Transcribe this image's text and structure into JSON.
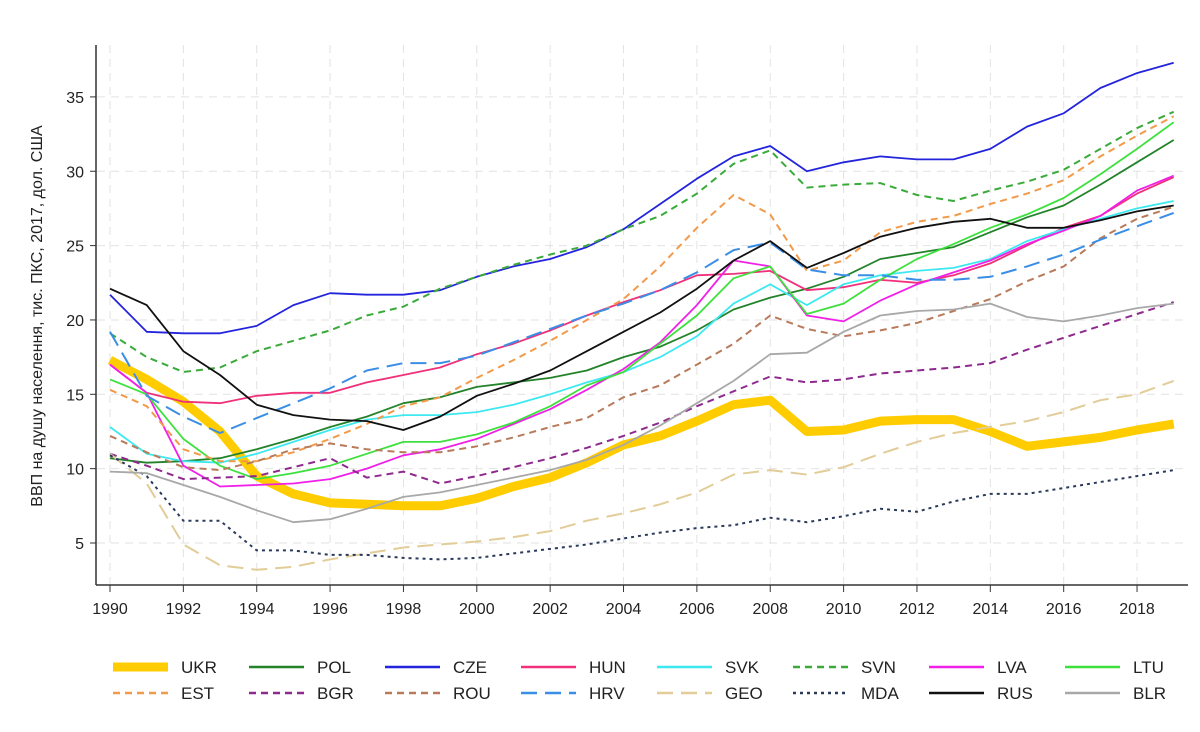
{
  "chart_data": {
    "type": "line",
    "title": "",
    "xlabel": "",
    "ylabel": "ВВП на душу населення, тис. ПКС, 2017, дол. США",
    "xlim": [
      1989.6,
      2019.4
    ],
    "ylim": [
      2.2,
      38.5
    ],
    "grid": true,
    "legend_position": "bottom",
    "x_ticks": [
      1990,
      1992,
      1994,
      1996,
      1998,
      2000,
      2002,
      2004,
      2006,
      2008,
      2010,
      2012,
      2014,
      2016,
      2018
    ],
    "y_ticks": [
      5,
      10,
      15,
      20,
      25,
      30,
      35
    ],
    "x": [
      1990,
      1991,
      1992,
      1993,
      1994,
      1995,
      1996,
      1997,
      1998,
      1999,
      2000,
      2001,
      2002,
      2003,
      2004,
      2005,
      2006,
      2007,
      2008,
      2009,
      2010,
      2011,
      2012,
      2013,
      2014,
      2015,
      2016,
      2017,
      2018,
      2019
    ],
    "series": [
      {
        "name": "UKR",
        "color": "#ffcc00",
        "style": "thick",
        "values": [
          17.3,
          16.0,
          14.5,
          12.5,
          9.5,
          8.3,
          7.7,
          7.6,
          7.5,
          7.5,
          8.0,
          8.8,
          9.4,
          10.4,
          11.6,
          12.2,
          13.2,
          14.3,
          14.6,
          12.5,
          12.6,
          13.2,
          13.3,
          13.3,
          12.5,
          11.5,
          11.8,
          12.1,
          12.6,
          13.0
        ]
      },
      {
        "name": "POL",
        "color": "#23832a",
        "style": "solid",
        "values": [
          10.7,
          10.4,
          10.5,
          10.7,
          11.3,
          12.0,
          12.8,
          13.5,
          14.4,
          14.8,
          15.5,
          15.8,
          16.1,
          16.6,
          17.5,
          18.2,
          19.3,
          20.7,
          21.5,
          22.1,
          22.9,
          24.1,
          24.5,
          24.9,
          25.9,
          26.9,
          27.7,
          29.1,
          30.6,
          32.1
        ]
      },
      {
        "name": "CZE",
        "color": "#2424dd",
        "style": "solid",
        "values": [
          21.7,
          19.2,
          19.1,
          19.1,
          19.6,
          21.0,
          21.8,
          21.7,
          21.7,
          22.0,
          22.9,
          23.6,
          24.1,
          24.9,
          26.1,
          27.8,
          29.5,
          31.0,
          31.7,
          30.0,
          30.6,
          31.0,
          30.8,
          30.8,
          31.5,
          33.0,
          33.9,
          35.6,
          36.6,
          37.3
        ]
      },
      {
        "name": "HUN",
        "color": "#f0307a",
        "style": "solid",
        "values": [
          17.0,
          15.1,
          14.5,
          14.4,
          14.9,
          15.1,
          15.1,
          15.8,
          16.3,
          16.8,
          17.7,
          18.4,
          19.3,
          20.3,
          21.2,
          22.0,
          23.0,
          23.1,
          23.3,
          22.0,
          22.2,
          22.7,
          22.5,
          23.0,
          23.8,
          25.0,
          26.2,
          27.0,
          28.5,
          29.6
        ]
      },
      {
        "name": "SVK",
        "color": "#3ee8f0",
        "style": "solid",
        "values": [
          12.8,
          11.0,
          10.5,
          10.4,
          11.0,
          11.8,
          12.6,
          13.3,
          13.6,
          13.6,
          13.8,
          14.3,
          15.0,
          15.8,
          16.5,
          17.5,
          18.9,
          21.1,
          22.4,
          21.0,
          22.4,
          23.0,
          23.3,
          23.5,
          24.1,
          25.3,
          26.1,
          26.8,
          27.5,
          28.0
        ]
      },
      {
        "name": "SVN",
        "color": "#3aaa3a",
        "style": "dash",
        "values": [
          19.1,
          17.5,
          16.5,
          16.8,
          17.9,
          18.6,
          19.3,
          20.3,
          20.9,
          22.1,
          22.9,
          23.7,
          24.4,
          25.0,
          26.1,
          27.0,
          28.5,
          30.5,
          31.4,
          28.9,
          29.1,
          29.2,
          28.4,
          28.0,
          28.7,
          29.3,
          30.1,
          31.5,
          32.9,
          34.0
        ]
      },
      {
        "name": "LVA",
        "color": "#f020e8",
        "style": "solid",
        "values": [
          17.0,
          15.1,
          10.2,
          8.8,
          8.9,
          9.0,
          9.3,
          10.0,
          10.9,
          11.3,
          12.0,
          13.0,
          14.0,
          15.3,
          16.7,
          18.5,
          21.0,
          24.0,
          23.6,
          20.3,
          19.9,
          21.3,
          22.4,
          23.2,
          24.0,
          25.1,
          26.0,
          27.0,
          28.7,
          29.7
        ]
      },
      {
        "name": "LTU",
        "color": "#3de03d",
        "style": "solid",
        "values": [
          16.0,
          15.0,
          12.0,
          10.2,
          9.3,
          9.7,
          10.2,
          11.0,
          11.8,
          11.8,
          12.3,
          13.1,
          14.2,
          15.6,
          16.5,
          18.4,
          20.3,
          22.8,
          23.6,
          20.4,
          21.1,
          22.7,
          24.1,
          25.1,
          26.2,
          27.1,
          28.2,
          29.8,
          31.5,
          33.3
        ]
      },
      {
        "name": "EST",
        "color": "#f39a4a",
        "style": "dash",
        "values": [
          15.3,
          14.2,
          11.3,
          10.5,
          10.5,
          11.1,
          12.0,
          13.0,
          14.2,
          14.8,
          16.1,
          17.3,
          18.6,
          20.0,
          21.4,
          23.6,
          26.2,
          28.4,
          27.1,
          23.3,
          24.0,
          25.9,
          26.6,
          27.0,
          27.8,
          28.5,
          29.4,
          31.0,
          32.4,
          33.7
        ]
      },
      {
        "name": "BGR",
        "color": "#8e2a8e",
        "style": "dash",
        "values": [
          11.0,
          10.2,
          9.3,
          9.4,
          9.5,
          10.1,
          10.7,
          9.4,
          9.8,
          9.0,
          9.5,
          10.1,
          10.7,
          11.4,
          12.2,
          13.1,
          14.2,
          15.2,
          16.2,
          15.8,
          16.0,
          16.4,
          16.6,
          16.8,
          17.1,
          18.0,
          18.8,
          19.6,
          20.4,
          21.2
        ]
      },
      {
        "name": "ROU",
        "color": "#b87a5a",
        "style": "dash",
        "values": [
          12.2,
          11.1,
          10.1,
          9.9,
          10.5,
          11.3,
          11.7,
          11.3,
          11.1,
          11.1,
          11.5,
          12.1,
          12.8,
          13.4,
          14.8,
          15.6,
          17.0,
          18.4,
          20.3,
          19.4,
          18.9,
          19.3,
          19.8,
          20.6,
          21.4,
          22.6,
          23.6,
          25.5,
          26.8,
          27.6
        ]
      },
      {
        "name": "HRV",
        "color": "#3a8ee6",
        "style": "longdash",
        "values": [
          19.2,
          14.9,
          13.5,
          12.4,
          13.4,
          14.4,
          15.4,
          16.6,
          17.1,
          17.1,
          17.6,
          18.5,
          19.4,
          20.3,
          21.1,
          22.0,
          23.2,
          24.7,
          25.2,
          23.4,
          23.0,
          23.0,
          22.7,
          22.7,
          22.9,
          23.6,
          24.4,
          25.4,
          26.3,
          27.2
        ]
      },
      {
        "name": "GEO",
        "color": "#e2cc98",
        "style": "longdash",
        "values": [
          11.0,
          9.0,
          4.9,
          3.5,
          3.2,
          3.4,
          3.9,
          4.3,
          4.7,
          4.9,
          5.1,
          5.4,
          5.8,
          6.5,
          7.0,
          7.6,
          8.4,
          9.6,
          9.9,
          9.6,
          10.1,
          11.0,
          11.8,
          12.4,
          12.8,
          13.2,
          13.8,
          14.6,
          15.0,
          15.9
        ]
      },
      {
        "name": "MDA",
        "color": "#2a3a5c",
        "style": "dot",
        "values": [
          10.9,
          9.5,
          6.5,
          6.5,
          4.5,
          4.5,
          4.2,
          4.2,
          4.0,
          3.9,
          4.0,
          4.3,
          4.6,
          4.9,
          5.3,
          5.7,
          6.0,
          6.2,
          6.7,
          6.4,
          6.8,
          7.3,
          7.1,
          7.8,
          8.3,
          8.3,
          8.7,
          9.1,
          9.5,
          9.9
        ]
      },
      {
        "name": "RUS",
        "color": "#111111",
        "style": "solid",
        "values": [
          22.1,
          21.0,
          17.9,
          16.3,
          14.3,
          13.6,
          13.3,
          13.2,
          12.6,
          13.5,
          14.9,
          15.7,
          16.6,
          17.9,
          19.2,
          20.5,
          22.1,
          24.0,
          25.3,
          23.5,
          24.5,
          25.6,
          26.2,
          26.6,
          26.8,
          26.2,
          26.2,
          26.7,
          27.3,
          27.7
        ]
      },
      {
        "name": "BLR",
        "color": "#a8a8a8",
        "style": "solid",
        "values": [
          9.8,
          9.7,
          8.9,
          8.1,
          7.2,
          6.4,
          6.6,
          7.3,
          8.1,
          8.4,
          8.9,
          9.4,
          9.9,
          10.6,
          11.6,
          12.9,
          14.4,
          15.9,
          17.7,
          17.8,
          19.2,
          20.3,
          20.6,
          20.7,
          21.1,
          20.2,
          19.9,
          20.3,
          20.8,
          21.1
        ]
      }
    ]
  }
}
